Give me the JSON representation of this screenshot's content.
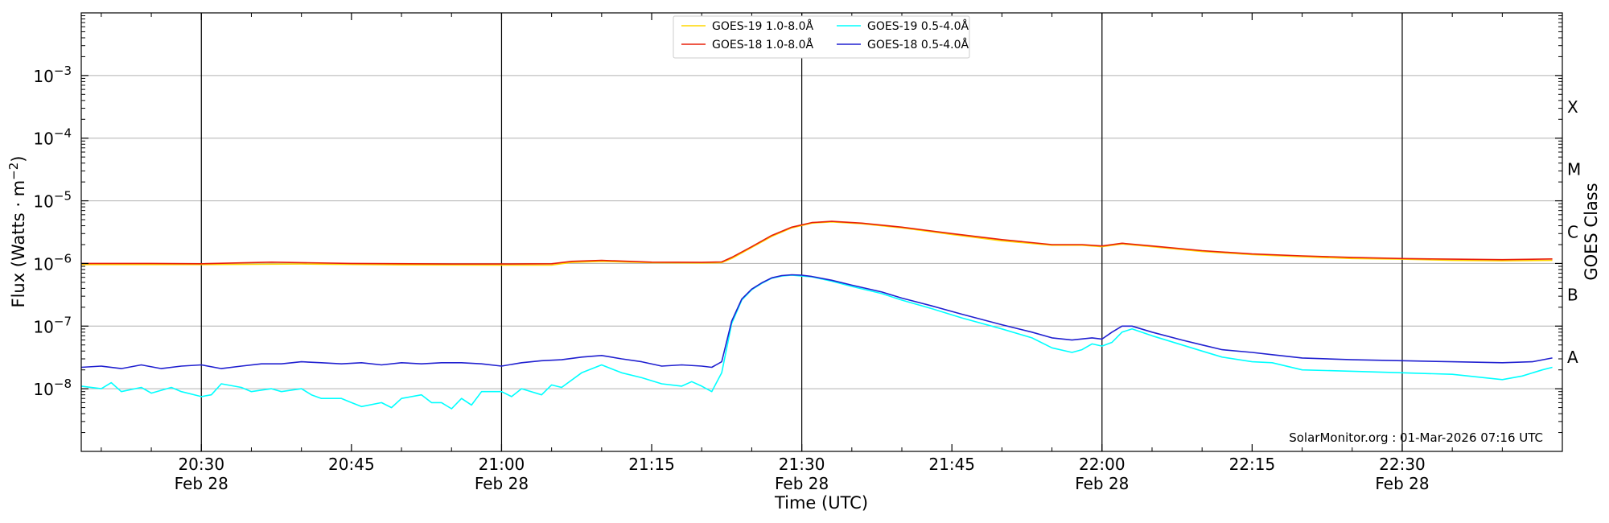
{
  "chart_data": {
    "type": "line",
    "ylabel": "Flux (Watts · m",
    "ylabel_sup": "−2",
    "ylabel_end": ")",
    "xlabel": "Time (UTC)",
    "right_label": "GOES Class",
    "y_scale": "log",
    "ylim": [
      1e-09,
      0.01
    ],
    "xlim": [
      "2026-02-28 20:18",
      "2026-02-28 22:46"
    ],
    "grid": "horizontal at decades 1e-8 to 1e-3",
    "legend_position": "top-center",
    "credit": "SolarMonitor.org : 01-Mar-2026 07:16 UTC",
    "y_ticks": [
      {
        "value": 1e-08,
        "base": "10",
        "exp": "−8"
      },
      {
        "value": 1e-07,
        "base": "10",
        "exp": "−7"
      },
      {
        "value": 1e-06,
        "base": "10",
        "exp": "−6"
      },
      {
        "value": 1e-05,
        "base": "10",
        "exp": "−5"
      },
      {
        "value": 0.0001,
        "base": "10",
        "exp": "−4"
      },
      {
        "value": 0.001,
        "base": "10",
        "exp": "−3"
      }
    ],
    "x_ticks": [
      {
        "time": "20:30",
        "line1": "20:30",
        "line2": "Feb 28",
        "major": true
      },
      {
        "time": "20:45",
        "line1": "20:45",
        "line2": "",
        "major": false
      },
      {
        "time": "21:00",
        "line1": "21:00",
        "line2": "Feb 28",
        "major": true
      },
      {
        "time": "21:15",
        "line1": "21:15",
        "line2": "",
        "major": false
      },
      {
        "time": "21:30",
        "line1": "21:30",
        "line2": "Feb 28",
        "major": true
      },
      {
        "time": "21:45",
        "line1": "21:45",
        "line2": "",
        "major": false
      },
      {
        "time": "22:00",
        "line1": "22:00",
        "line2": "Feb 28",
        "major": true
      },
      {
        "time": "22:15",
        "line1": "22:15",
        "line2": "",
        "major": false
      },
      {
        "time": "22:30",
        "line1": "22:30",
        "line2": "Feb 28",
        "major": true
      }
    ],
    "goes_classes": [
      {
        "label": "A",
        "value": 3.16e-08
      },
      {
        "label": "B",
        "value": 3.16e-07
      },
      {
        "label": "C",
        "value": 3.16e-06
      },
      {
        "label": "M",
        "value": 3.16e-05
      },
      {
        "label": "X",
        "value": 0.000316
      }
    ],
    "series": [
      {
        "name": "GOES-19 1.0-8.0Å",
        "color": "#ffd700",
        "points": [
          [
            "20:18",
            9.6e-07
          ],
          [
            "20:30",
            9.6e-07
          ],
          [
            "20:40",
            9.8e-07
          ],
          [
            "20:50",
            9.5e-07
          ],
          [
            "21:00",
            9.4e-07
          ],
          [
            "21:05",
            9.4e-07
          ],
          [
            "21:07",
            1.04e-06
          ],
          [
            "21:10",
            1.08e-06
          ],
          [
            "21:15",
            1.03e-06
          ],
          [
            "21:20",
            1.02e-06
          ],
          [
            "21:22",
            1.03e-06
          ],
          [
            "21:23",
            1.2e-06
          ],
          [
            "21:25",
            1.8e-06
          ],
          [
            "21:27",
            2.7e-06
          ],
          [
            "21:29",
            3.7e-06
          ],
          [
            "21:31",
            4.4e-06
          ],
          [
            "21:33",
            4.6e-06
          ],
          [
            "21:36",
            4.3e-06
          ],
          [
            "21:40",
            3.7e-06
          ],
          [
            "21:45",
            2.9e-06
          ],
          [
            "21:50",
            2.3e-06
          ],
          [
            "21:55",
            1.95e-06
          ],
          [
            "21:58",
            1.95e-06
          ],
          [
            "22:00",
            1.85e-06
          ],
          [
            "22:02",
            2.05e-06
          ],
          [
            "22:05",
            1.85e-06
          ],
          [
            "22:10",
            1.55e-06
          ],
          [
            "22:15",
            1.38e-06
          ],
          [
            "22:20",
            1.28e-06
          ],
          [
            "22:25",
            1.2e-06
          ],
          [
            "22:30",
            1.17e-06
          ],
          [
            "22:35",
            1.12e-06
          ],
          [
            "22:40",
            1.1e-06
          ],
          [
            "22:45",
            1.12e-06
          ]
        ]
      },
      {
        "name": "GOES-18 1.0-8.0Å",
        "color": "#e8200a",
        "points": [
          [
            "20:18",
            1e-06
          ],
          [
            "20:25",
            1e-06
          ],
          [
            "20:30",
            9.9e-07
          ],
          [
            "20:37",
            1.05e-06
          ],
          [
            "20:45",
            1e-06
          ],
          [
            "20:55",
            9.8e-07
          ],
          [
            "21:00",
            9.8e-07
          ],
          [
            "21:05",
            9.9e-07
          ],
          [
            "21:07",
            1.08e-06
          ],
          [
            "21:10",
            1.12e-06
          ],
          [
            "21:15",
            1.05e-06
          ],
          [
            "21:20",
            1.04e-06
          ],
          [
            "21:22",
            1.06e-06
          ],
          [
            "21:23",
            1.25e-06
          ],
          [
            "21:25",
            1.85e-06
          ],
          [
            "21:27",
            2.8e-06
          ],
          [
            "21:29",
            3.8e-06
          ],
          [
            "21:31",
            4.5e-06
          ],
          [
            "21:33",
            4.7e-06
          ],
          [
            "21:36",
            4.4e-06
          ],
          [
            "21:40",
            3.8e-06
          ],
          [
            "21:45",
            3e-06
          ],
          [
            "21:50",
            2.4e-06
          ],
          [
            "21:55",
            2e-06
          ],
          [
            "21:58",
            2e-06
          ],
          [
            "22:00",
            1.9e-06
          ],
          [
            "22:02",
            2.1e-06
          ],
          [
            "22:05",
            1.9e-06
          ],
          [
            "22:10",
            1.6e-06
          ],
          [
            "22:15",
            1.42e-06
          ],
          [
            "22:20",
            1.32e-06
          ],
          [
            "22:25",
            1.25e-06
          ],
          [
            "22:30",
            1.2e-06
          ],
          [
            "22:35",
            1.17e-06
          ],
          [
            "22:40",
            1.15e-06
          ],
          [
            "22:45",
            1.18e-06
          ]
        ]
      },
      {
        "name": "GOES-19 0.5-4.0Å",
        "color": "#00ffff",
        "points": [
          [
            "20:18",
            1.1e-08
          ],
          [
            "20:20",
            1e-08
          ],
          [
            "20:21",
            1.25e-08
          ],
          [
            "20:22",
            9e-09
          ],
          [
            "20:24",
            1.05e-08
          ],
          [
            "20:25",
            8.5e-09
          ],
          [
            "20:27",
            1.05e-08
          ],
          [
            "20:28",
            9e-09
          ],
          [
            "20:30",
            7.5e-09
          ],
          [
            "20:31",
            8e-09
          ],
          [
            "20:32",
            1.2e-08
          ],
          [
            "20:34",
            1.05e-08
          ],
          [
            "20:35",
            9e-09
          ],
          [
            "20:37",
            1e-08
          ],
          [
            "20:38",
            9e-09
          ],
          [
            "20:40",
            1e-08
          ],
          [
            "20:41",
            8e-09
          ],
          [
            "20:42",
            7e-09
          ],
          [
            "20:44",
            7e-09
          ],
          [
            "20:45",
            6e-09
          ],
          [
            "20:46",
            5.2e-09
          ],
          [
            "20:48",
            6e-09
          ],
          [
            "20:49",
            5e-09
          ],
          [
            "20:50",
            7e-09
          ],
          [
            "20:52",
            8e-09
          ],
          [
            "20:53",
            6e-09
          ],
          [
            "20:54",
            6e-09
          ],
          [
            "20:55",
            4.8e-09
          ],
          [
            "20:56",
            7e-09
          ],
          [
            "20:57",
            5.5e-09
          ],
          [
            "20:58",
            9e-09
          ],
          [
            "21:00",
            9e-09
          ],
          [
            "21:01",
            7.5e-09
          ],
          [
            "21:02",
            1e-08
          ],
          [
            "21:04",
            8e-09
          ],
          [
            "21:05",
            1.15e-08
          ],
          [
            "21:06",
            1.05e-08
          ],
          [
            "21:08",
            1.8e-08
          ],
          [
            "21:10",
            2.4e-08
          ],
          [
            "21:12",
            1.8e-08
          ],
          [
            "21:14",
            1.5e-08
          ],
          [
            "21:16",
            1.2e-08
          ],
          [
            "21:18",
            1.1e-08
          ],
          [
            "21:19",
            1.3e-08
          ],
          [
            "21:20",
            1.1e-08
          ],
          [
            "21:21",
            9e-09
          ],
          [
            "21:22",
            1.8e-08
          ],
          [
            "21:23",
            1.1e-07
          ],
          [
            "21:24",
            2.6e-07
          ],
          [
            "21:25",
            3.8e-07
          ],
          [
            "21:26",
            4.8e-07
          ],
          [
            "21:27",
            5.8e-07
          ],
          [
            "21:28",
            6.3e-07
          ],
          [
            "21:29",
            6.5e-07
          ],
          [
            "21:30",
            6.3e-07
          ],
          [
            "21:31",
            6.1e-07
          ],
          [
            "21:33",
            5.2e-07
          ],
          [
            "21:35",
            4.3e-07
          ],
          [
            "21:38",
            3.3e-07
          ],
          [
            "21:40",
            2.6e-07
          ],
          [
            "21:43",
            1.9e-07
          ],
          [
            "21:46",
            1.35e-07
          ],
          [
            "21:50",
            9e-08
          ],
          [
            "21:53",
            6.5e-08
          ],
          [
            "21:55",
            4.5e-08
          ],
          [
            "21:57",
            3.8e-08
          ],
          [
            "21:58",
            4.2e-08
          ],
          [
            "21:59",
            5.2e-08
          ],
          [
            "22:00",
            4.8e-08
          ],
          [
            "22:01",
            5.5e-08
          ],
          [
            "22:02",
            8e-08
          ],
          [
            "22:03",
            9e-08
          ],
          [
            "22:05",
            7e-08
          ],
          [
            "22:08",
            5e-08
          ],
          [
            "22:10",
            4e-08
          ],
          [
            "22:12",
            3.2e-08
          ],
          [
            "22:15",
            2.7e-08
          ],
          [
            "22:17",
            2.6e-08
          ],
          [
            "22:20",
            2e-08
          ],
          [
            "22:25",
            1.9e-08
          ],
          [
            "22:30",
            1.8e-08
          ],
          [
            "22:35",
            1.7e-08
          ],
          [
            "22:40",
            1.4e-08
          ],
          [
            "22:42",
            1.6e-08
          ],
          [
            "22:44",
            2e-08
          ],
          [
            "22:45",
            2.2e-08
          ]
        ]
      },
      {
        "name": "GOES-18 0.5-4.0Å",
        "color": "#2020d0",
        "points": [
          [
            "20:18",
            2.2e-08
          ],
          [
            "20:20",
            2.3e-08
          ],
          [
            "20:22",
            2.1e-08
          ],
          [
            "20:24",
            2.4e-08
          ],
          [
            "20:26",
            2.1e-08
          ],
          [
            "20:28",
            2.3e-08
          ],
          [
            "20:30",
            2.4e-08
          ],
          [
            "20:32",
            2.1e-08
          ],
          [
            "20:34",
            2.3e-08
          ],
          [
            "20:36",
            2.5e-08
          ],
          [
            "20:38",
            2.5e-08
          ],
          [
            "20:40",
            2.7e-08
          ],
          [
            "20:42",
            2.6e-08
          ],
          [
            "20:44",
            2.5e-08
          ],
          [
            "20:46",
            2.6e-08
          ],
          [
            "20:48",
            2.4e-08
          ],
          [
            "20:50",
            2.6e-08
          ],
          [
            "20:52",
            2.5e-08
          ],
          [
            "20:54",
            2.6e-08
          ],
          [
            "20:56",
            2.6e-08
          ],
          [
            "20:58",
            2.5e-08
          ],
          [
            "21:00",
            2.3e-08
          ],
          [
            "21:02",
            2.6e-08
          ],
          [
            "21:04",
            2.8e-08
          ],
          [
            "21:06",
            2.9e-08
          ],
          [
            "21:08",
            3.2e-08
          ],
          [
            "21:10",
            3.4e-08
          ],
          [
            "21:12",
            3e-08
          ],
          [
            "21:14",
            2.7e-08
          ],
          [
            "21:16",
            2.3e-08
          ],
          [
            "21:18",
            2.4e-08
          ],
          [
            "21:20",
            2.3e-08
          ],
          [
            "21:21",
            2.2e-08
          ],
          [
            "21:22",
            2.7e-08
          ],
          [
            "21:23",
            1.2e-07
          ],
          [
            "21:24",
            2.7e-07
          ],
          [
            "21:25",
            3.9e-07
          ],
          [
            "21:26",
            4.9e-07
          ],
          [
            "21:27",
            5.9e-07
          ],
          [
            "21:28",
            6.4e-07
          ],
          [
            "21:29",
            6.6e-07
          ],
          [
            "21:30",
            6.5e-07
          ],
          [
            "21:31",
            6.2e-07
          ],
          [
            "21:33",
            5.4e-07
          ],
          [
            "21:35",
            4.5e-07
          ],
          [
            "21:38",
            3.5e-07
          ],
          [
            "21:40",
            2.8e-07
          ],
          [
            "21:43",
            2.1e-07
          ],
          [
            "21:46",
            1.55e-07
          ],
          [
            "21:50",
            1.05e-07
          ],
          [
            "21:53",
            8e-08
          ],
          [
            "21:55",
            6.5e-08
          ],
          [
            "21:57",
            6e-08
          ],
          [
            "21:59",
            6.5e-08
          ],
          [
            "22:00",
            6.2e-08
          ],
          [
            "22:01",
            8e-08
          ],
          [
            "22:02",
            1e-07
          ],
          [
            "22:03",
            1e-07
          ],
          [
            "22:05",
            8e-08
          ],
          [
            "22:08",
            6e-08
          ],
          [
            "22:10",
            5e-08
          ],
          [
            "22:12",
            4.2e-08
          ],
          [
            "22:15",
            3.8e-08
          ],
          [
            "22:17",
            3.5e-08
          ],
          [
            "22:20",
            3.1e-08
          ],
          [
            "22:25",
            2.9e-08
          ],
          [
            "22:30",
            2.8e-08
          ],
          [
            "22:35",
            2.7e-08
          ],
          [
            "22:40",
            2.6e-08
          ],
          [
            "22:43",
            2.7e-08
          ],
          [
            "22:45",
            3.1e-08
          ]
        ]
      }
    ]
  }
}
